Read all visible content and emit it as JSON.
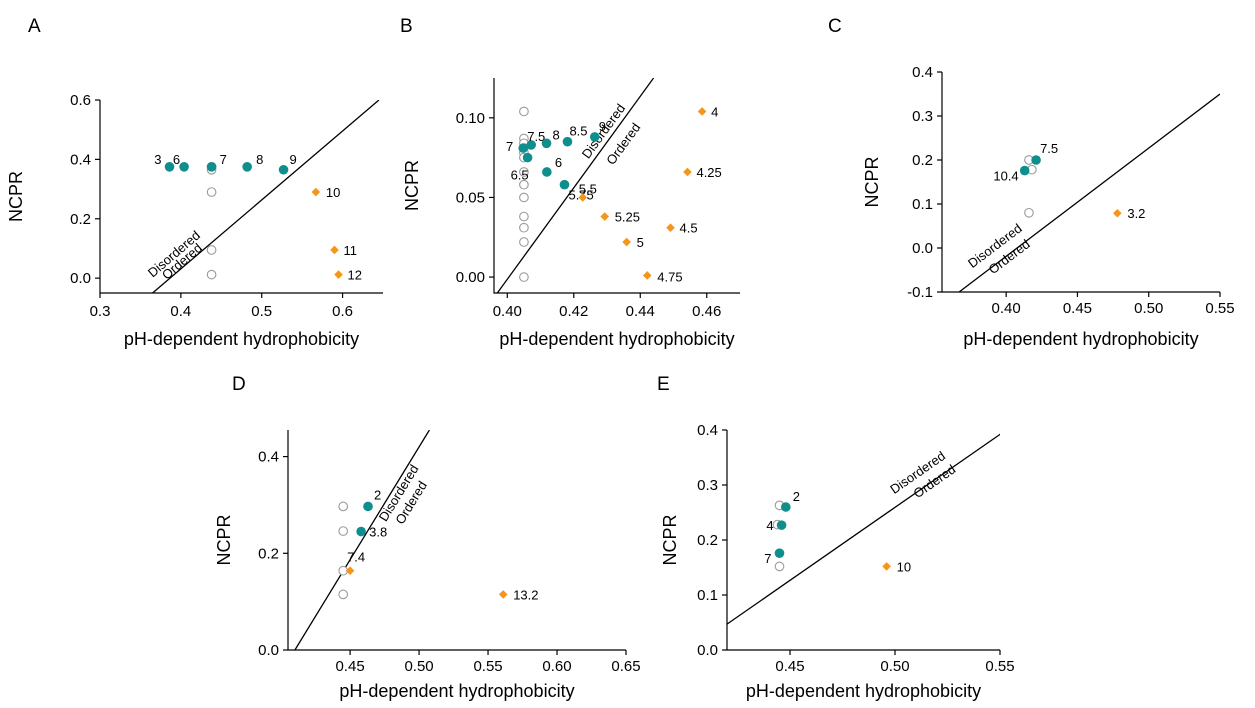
{
  "colors": {
    "ordered_point": "#0E8E8C",
    "disordered_point": "#F5961B",
    "open_point": "#9A9A9A"
  },
  "chart_data": [
    {
      "panel": "A",
      "type": "scatter",
      "xlabel": "pH-dependent hydrophobicity",
      "ylabel": "NCPR",
      "xlim": [
        0.3,
        0.65
      ],
      "ylim": [
        -0.05,
        0.6
      ],
      "xticks": [
        "0.3",
        "0.4",
        "0.5",
        "0.6"
      ],
      "xtick_values": [
        0.3,
        0.4,
        0.5,
        0.6
      ],
      "yticks": [
        "0.0",
        "0.2",
        "0.4",
        "0.6"
      ],
      "ytick_values": [
        0.0,
        0.2,
        0.4,
        0.6
      ],
      "boundary": [
        [
          0.365,
          -0.05
        ],
        [
          0.645,
          0.6
        ]
      ],
      "region_labels": [
        "Disordered",
        "Ordered"
      ],
      "series": [
        {
          "kind": "open",
          "points": [
            {
              "x": 0.438,
              "y": 0.375
            },
            {
              "x": 0.438,
              "y": 0.365
            },
            {
              "x": 0.438,
              "y": 0.29
            },
            {
              "x": 0.438,
              "y": 0.095
            },
            {
              "x": 0.438,
              "y": 0.012
            }
          ]
        },
        {
          "kind": "ordered",
          "points": [
            {
              "x": 0.386,
              "y": 0.375,
              "label": "3"
            },
            {
              "x": 0.404,
              "y": 0.375,
              "label": "6"
            },
            {
              "x": 0.438,
              "y": 0.375,
              "label": "7"
            },
            {
              "x": 0.482,
              "y": 0.375,
              "label": "8"
            },
            {
              "x": 0.527,
              "y": 0.365,
              "label": "9"
            }
          ]
        },
        {
          "kind": "disordered",
          "points": [
            {
              "x": 0.567,
              "y": 0.29,
              "label": "10"
            },
            {
              "x": 0.59,
              "y": 0.095,
              "label": "11"
            },
            {
              "x": 0.595,
              "y": 0.012,
              "label": "12"
            }
          ]
        }
      ]
    },
    {
      "panel": "B",
      "type": "scatter",
      "xlabel": "pH-dependent hydrophobicity",
      "ylabel": "NCPR",
      "xlim": [
        0.396,
        0.47
      ],
      "ylim": [
        -0.01,
        0.125
      ],
      "xticks": [
        "0.40",
        "0.42",
        "0.44",
        "0.46"
      ],
      "xtick_values": [
        0.4,
        0.42,
        0.44,
        0.46
      ],
      "yticks": [
        "0.00",
        "0.05",
        "0.10"
      ],
      "ytick_values": [
        0.0,
        0.05,
        0.1
      ],
      "boundary": [
        [
          0.397,
          -0.01
        ],
        [
          0.444,
          0.125
        ]
      ],
      "region_labels": [
        "Disordered",
        "Ordered"
      ],
      "series": [
        {
          "kind": "open",
          "points": [
            {
              "x": 0.405,
              "y": 0.104
            },
            {
              "x": 0.405,
              "y": 0.087
            },
            {
              "x": 0.405,
              "y": 0.084
            },
            {
              "x": 0.405,
              "y": 0.081
            },
            {
              "x": 0.405,
              "y": 0.078
            },
            {
              "x": 0.405,
              "y": 0.075
            },
            {
              "x": 0.405,
              "y": 0.066
            },
            {
              "x": 0.405,
              "y": 0.058
            },
            {
              "x": 0.405,
              "y": 0.05
            },
            {
              "x": 0.405,
              "y": 0.038
            },
            {
              "x": 0.405,
              "y": 0.031
            },
            {
              "x": 0.405,
              "y": 0.022
            },
            {
              "x": 0.405,
              "y": 0.0
            }
          ]
        },
        {
          "kind": "ordered",
          "points": [
            {
              "x": 0.4048,
              "y": 0.081,
              "label": "7"
            },
            {
              "x": 0.4061,
              "y": 0.075,
              "label": "6.5"
            },
            {
              "x": 0.4072,
              "y": 0.083,
              "label": "7.5"
            },
            {
              "x": 0.4118,
              "y": 0.084,
              "label": "8"
            },
            {
              "x": 0.4119,
              "y": 0.066,
              "label": "6"
            },
            {
              "x": 0.4172,
              "y": 0.058,
              "label": "5.75"
            },
            {
              "x": 0.4181,
              "y": 0.085,
              "label": "8.5"
            },
            {
              "x": 0.4263,
              "y": 0.088,
              "label": "9"
            }
          ]
        },
        {
          "kind": "disordered",
          "points": [
            {
              "x": 0.4586,
              "y": 0.104,
              "label": "4"
            },
            {
              "x": 0.4542,
              "y": 0.066,
              "label": "4.25"
            },
            {
              "x": 0.4491,
              "y": 0.031,
              "label": "4.5"
            },
            {
              "x": 0.4421,
              "y": 0.001,
              "label": "4.75"
            },
            {
              "x": 0.4359,
              "y": 0.022,
              "label": "5"
            },
            {
              "x": 0.4293,
              "y": 0.038,
              "label": "5.25"
            },
            {
              "x": 0.4227,
              "y": 0.05,
              "label": "5.5"
            }
          ]
        }
      ]
    },
    {
      "panel": "C",
      "type": "scatter",
      "xlabel": "pH-dependent hydrophobicity",
      "ylabel": "NCPR",
      "xlim": [
        0.355,
        0.55
      ],
      "ylim": [
        -0.1,
        0.4
      ],
      "xticks": [
        "0.40",
        "0.45",
        "0.50",
        "0.55"
      ],
      "xtick_values": [
        0.4,
        0.45,
        0.5,
        0.55
      ],
      "yticks": [
        "-0.1",
        "0.0",
        "0.1",
        "0.2",
        "0.3",
        "0.4"
      ],
      "ytick_values": [
        -0.1,
        0.0,
        0.1,
        0.2,
        0.3,
        0.4
      ],
      "boundary": [
        [
          0.367,
          -0.1
        ],
        [
          0.55,
          0.35
        ]
      ],
      "region_labels": [
        "Disordered",
        "Ordered"
      ],
      "series": [
        {
          "kind": "open",
          "points": [
            {
              "x": 0.416,
              "y": 0.2
            },
            {
              "x": 0.418,
              "y": 0.178
            },
            {
              "x": 0.416,
              "y": 0.08
            }
          ]
        },
        {
          "kind": "ordered",
          "points": [
            {
              "x": 0.421,
              "y": 0.2,
              "label": "7.5"
            },
            {
              "x": 0.413,
              "y": 0.176,
              "label": "10.4"
            }
          ]
        },
        {
          "kind": "disordered",
          "points": [
            {
              "x": 0.478,
              "y": 0.079,
              "label": "3.2"
            }
          ]
        }
      ]
    },
    {
      "panel": "D",
      "type": "scatter",
      "xlabel": "pH-dependent hydrophobicity",
      "ylabel": "NCPR",
      "xlim": [
        0.405,
        0.65
      ],
      "ylim": [
        0.0,
        0.455
      ],
      "xticks": [
        "0.45",
        "0.50",
        "0.55",
        "0.60",
        "0.65"
      ],
      "xtick_values": [
        0.45,
        0.5,
        0.55,
        0.6,
        0.65
      ],
      "yticks": [
        "0.0",
        "0.2",
        "0.4"
      ],
      "ytick_values": [
        0.0,
        0.2,
        0.4
      ],
      "boundary": [
        [
          0.41,
          0.0
        ],
        [
          0.5075,
          0.455
        ]
      ],
      "region_labels": [
        "Disordered",
        "Ordered"
      ],
      "series": [
        {
          "kind": "open",
          "points": [
            {
              "x": 0.445,
              "y": 0.297
            },
            {
              "x": 0.445,
              "y": 0.246
            },
            {
              "x": 0.445,
              "y": 0.164
            },
            {
              "x": 0.445,
              "y": 0.115
            }
          ]
        },
        {
          "kind": "ordered",
          "points": [
            {
              "x": 0.463,
              "y": 0.297,
              "label": "2"
            },
            {
              "x": 0.458,
              "y": 0.245,
              "label": "3.8"
            }
          ]
        },
        {
          "kind": "disordered",
          "points": [
            {
              "x": 0.45,
              "y": 0.164,
              "label": "7.4"
            },
            {
              "x": 0.561,
              "y": 0.115,
              "label": "13.2"
            }
          ]
        }
      ]
    },
    {
      "panel": "E",
      "type": "scatter",
      "xlabel": "pH-dependent hydrophobicity",
      "ylabel": "NCPR",
      "xlim": [
        0.42,
        0.55
      ],
      "ylim": [
        0.0,
        0.4
      ],
      "xticks": [
        "0.45",
        "0.50",
        "0.55"
      ],
      "xtick_values": [
        0.45,
        0.5,
        0.55
      ],
      "yticks": [
        "0.0",
        "0.1",
        "0.2",
        "0.3",
        "0.4"
      ],
      "ytick_values": [
        0.0,
        0.1,
        0.2,
        0.3,
        0.4
      ],
      "boundary": [
        [
          0.42,
          0.047
        ],
        [
          0.553,
          0.4
        ]
      ],
      "region_labels": [
        "Disordered",
        "Ordered"
      ],
      "series": [
        {
          "kind": "open",
          "points": [
            {
              "x": 0.445,
              "y": 0.263
            },
            {
              "x": 0.444,
              "y": 0.228
            },
            {
              "x": 0.445,
              "y": 0.152
            }
          ]
        },
        {
          "kind": "ordered",
          "points": [
            {
              "x": 0.448,
              "y": 0.26,
              "label": "2"
            },
            {
              "x": 0.446,
              "y": 0.227,
              "label": "4"
            },
            {
              "x": 0.445,
              "y": 0.176,
              "label": "7"
            }
          ]
        },
        {
          "kind": "disordered",
          "points": [
            {
              "x": 0.496,
              "y": 0.152,
              "label": "10"
            }
          ]
        }
      ]
    }
  ]
}
